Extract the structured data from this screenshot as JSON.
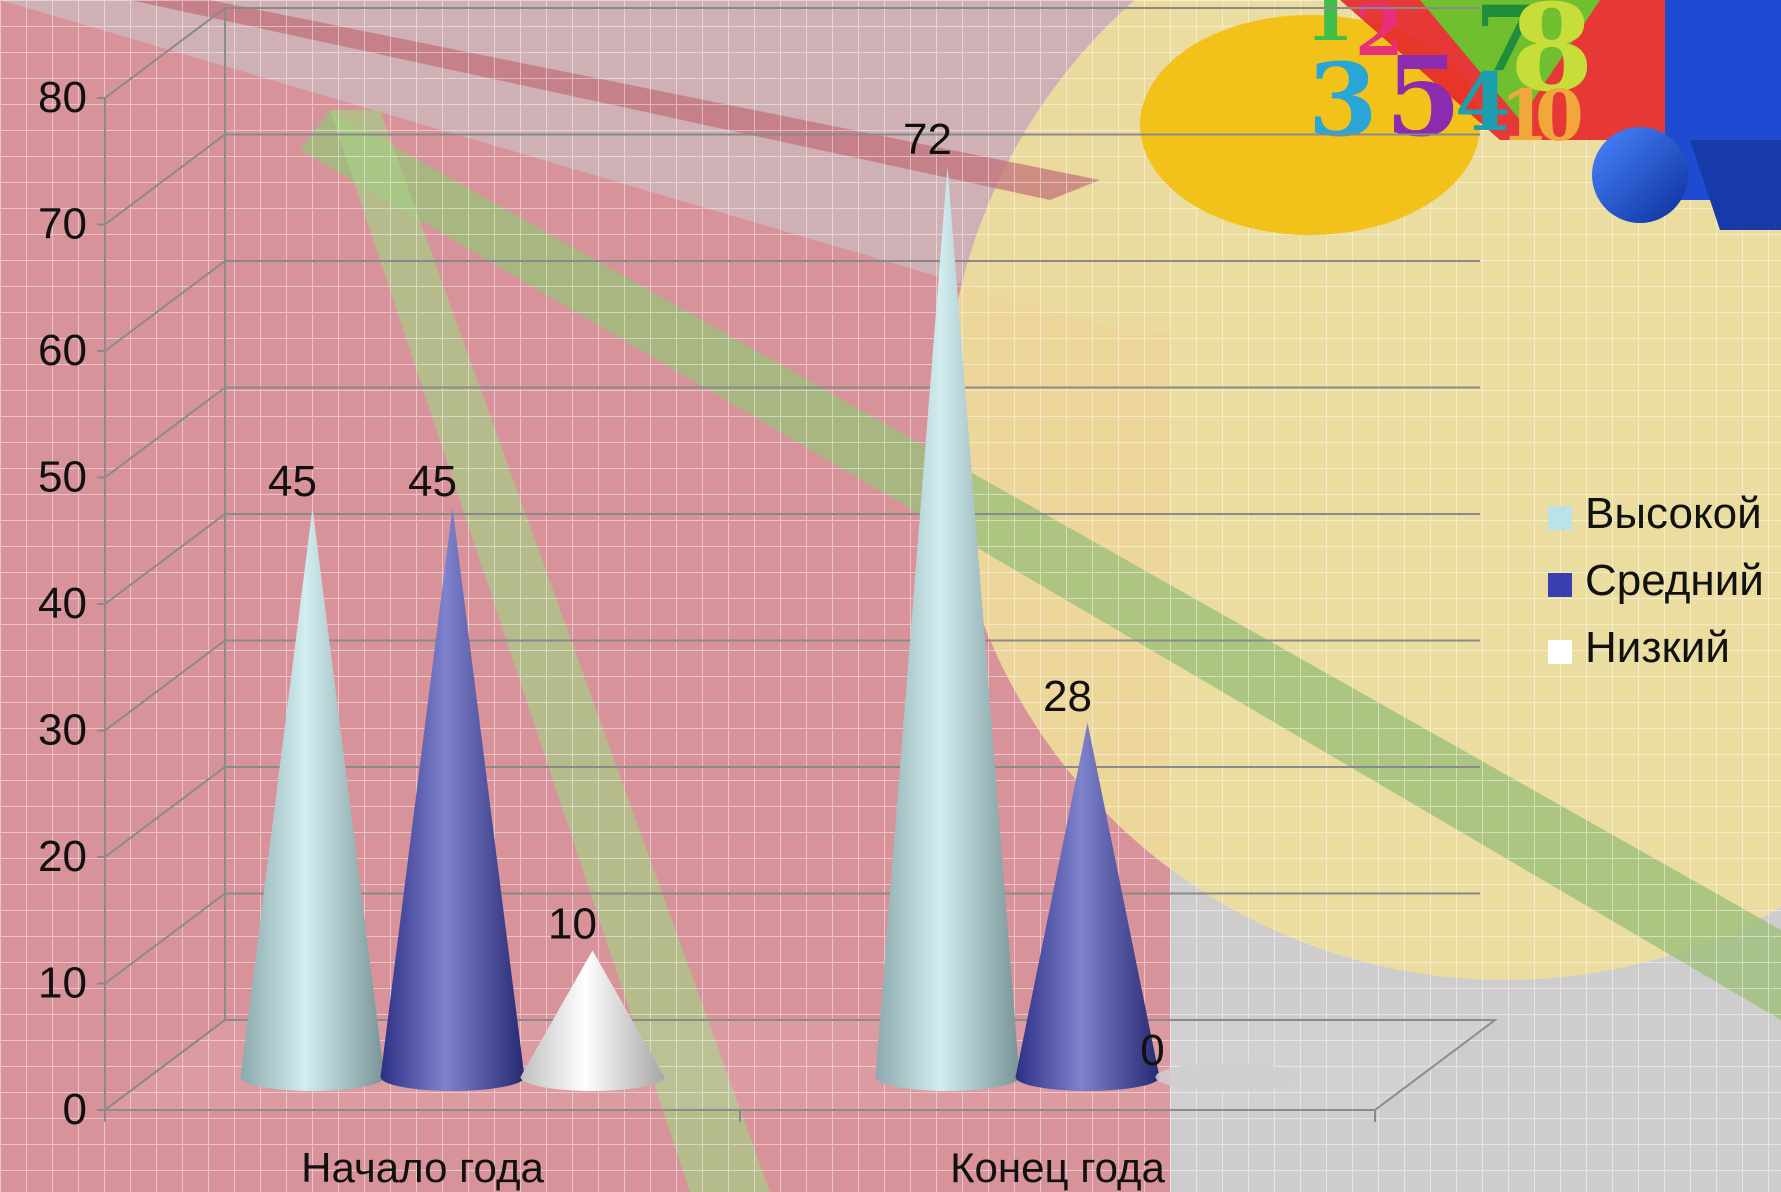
{
  "chart_data": {
    "type": "bar",
    "bar_shape": "cone",
    "categories": [
      "Начало года",
      "Конец года"
    ],
    "series": [
      {
        "name": "Высокой",
        "values": [
          45,
          72
        ],
        "color": "#b9e3e6"
      },
      {
        "name": "Средний",
        "values": [
          45,
          28
        ],
        "color": "#3a3fb0"
      },
      {
        "name": "Низкий",
        "values": [
          10,
          0
        ],
        "color": "#ffffff"
      }
    ],
    "y_ticks": [
      "0",
      "10",
      "20",
      "30",
      "40",
      "50",
      "60",
      "70",
      "80"
    ],
    "ylim": [
      0,
      80
    ],
    "grid": true,
    "legend_position": "right",
    "data_labels": true
  },
  "decoration": {
    "numbers_text": [
      "1",
      "2",
      "3",
      "5",
      "4",
      "7",
      "8",
      "1",
      "0"
    ],
    "palette": {
      "red": "#d07a82",
      "yellow": "#f1dc92",
      "green": "#8fb26e",
      "blue": "#1d4fc4",
      "gold": "#f2c21b"
    }
  }
}
